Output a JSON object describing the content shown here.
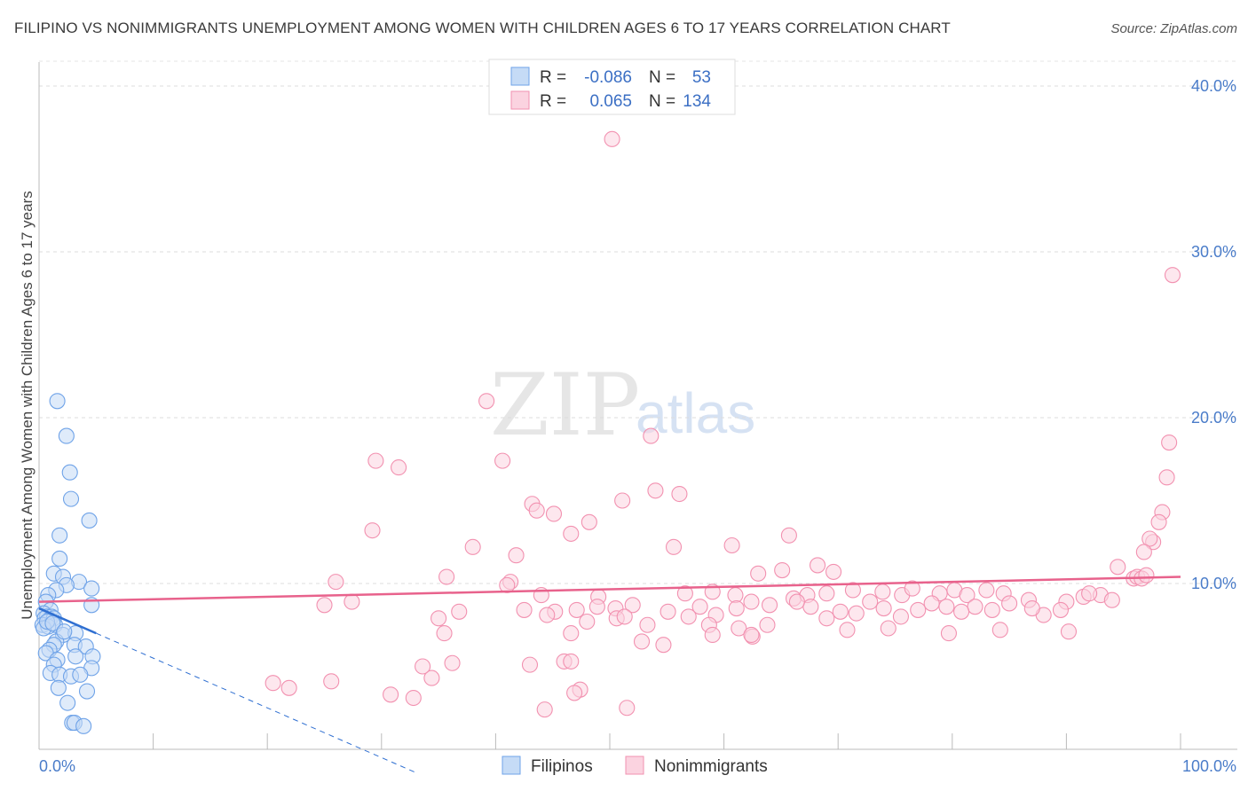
{
  "header": {
    "title": "FILIPINO VS NONIMMIGRANTS UNEMPLOYMENT AMONG WOMEN WITH CHILDREN AGES 6 TO 17 YEARS CORRELATION CHART",
    "source": "Source: ZipAtlas.com"
  },
  "watermark": {
    "zip": "ZIP",
    "atlas": "atlas"
  },
  "legend_box": {
    "rows": [
      {
        "r_label": "R =",
        "r_value": "-0.086",
        "n_label": "N =",
        "n_value": "53"
      },
      {
        "r_label": "R =",
        "r_value": "0.065",
        "n_label": "N =",
        "n_value": "134"
      }
    ]
  },
  "bottom_legend": {
    "series1": "Filipinos",
    "series2": "Nonimmigrants"
  },
  "chart_data": {
    "type": "scatter",
    "title": "FILIPINO VS NONIMMIGRANTS UNEMPLOYMENT AMONG WOMEN WITH CHILDREN AGES 6 TO 17 YEARS CORRELATION CHART",
    "ylabel": "Unemployment Among Women with Children Ages 6 to 17 years",
    "xlabel": "",
    "xlim": [
      0,
      100
    ],
    "ylim": [
      0,
      42
    ],
    "x_tick_labels": [
      "0.0%",
      "100.0%"
    ],
    "y_ticks": [
      10,
      20,
      30,
      40
    ],
    "y_tick_labels": [
      "10.0%",
      "20.0%",
      "30.0%",
      "40.0%"
    ],
    "grid": "horizontal dashed",
    "colors": {
      "filipinos": "#6fa3e8",
      "nonimmigrants": "#f291b0",
      "filipinos_line": "#2f6fd1",
      "nonimmigrants_line": "#e8628c"
    },
    "series": [
      {
        "name": "Filipinos",
        "R": -0.086,
        "N": 53,
        "trend": {
          "x0": 0,
          "y0": 8.5,
          "x1": 5,
          "y1": 7.0,
          "dashed_to_x": 33
        },
        "points": [
          [
            1.6,
            21.0
          ],
          [
            2.4,
            18.9
          ],
          [
            2.7,
            16.7
          ],
          [
            2.8,
            15.1
          ],
          [
            4.4,
            13.8
          ],
          [
            1.8,
            12.9
          ],
          [
            1.8,
            11.5
          ],
          [
            1.3,
            10.6
          ],
          [
            2.1,
            10.4
          ],
          [
            3.5,
            10.1
          ],
          [
            2.4,
            9.9
          ],
          [
            4.6,
            9.7
          ],
          [
            1.5,
            9.6
          ],
          [
            0.8,
            9.3
          ],
          [
            0.6,
            8.9
          ],
          [
            1.0,
            8.4
          ],
          [
            0.4,
            8.2
          ],
          [
            0.7,
            8.0
          ],
          [
            1.1,
            8.0
          ],
          [
            0.5,
            7.9
          ],
          [
            0.9,
            7.8
          ],
          [
            1.3,
            7.9
          ],
          [
            1.4,
            7.5
          ],
          [
            0.3,
            7.5
          ],
          [
            0.8,
            7.4
          ],
          [
            0.4,
            7.3
          ],
          [
            4.6,
            8.7
          ],
          [
            2.1,
            6.9
          ],
          [
            3.2,
            7.0
          ],
          [
            1.5,
            6.5
          ],
          [
            1.3,
            6.3
          ],
          [
            3.1,
            6.3
          ],
          [
            4.1,
            6.2
          ],
          [
            0.9,
            6.0
          ],
          [
            0.6,
            5.8
          ],
          [
            3.2,
            5.6
          ],
          [
            4.7,
            5.6
          ],
          [
            1.6,
            5.4
          ],
          [
            1.3,
            5.1
          ],
          [
            4.6,
            4.9
          ],
          [
            1.0,
            4.6
          ],
          [
            1.8,
            4.5
          ],
          [
            2.8,
            4.4
          ],
          [
            3.6,
            4.5
          ],
          [
            1.7,
            3.7
          ],
          [
            4.2,
            3.5
          ],
          [
            2.5,
            2.8
          ],
          [
            2.9,
            1.6
          ],
          [
            3.1,
            1.6
          ],
          [
            3.9,
            1.4
          ],
          [
            0.7,
            7.7
          ],
          [
            1.2,
            7.6
          ],
          [
            2.2,
            7.1
          ]
        ]
      },
      {
        "name": "Nonimmigrants",
        "R": 0.065,
        "N": 134,
        "trend": {
          "x0": 0,
          "y0": 8.9,
          "x1": 100,
          "y1": 10.4
        },
        "points": [
          [
            50.2,
            36.8
          ],
          [
            39.2,
            21.0
          ],
          [
            53.6,
            18.9
          ],
          [
            29.5,
            17.4
          ],
          [
            31.5,
            17.0
          ],
          [
            40.6,
            17.4
          ],
          [
            99.3,
            28.6
          ],
          [
            99.0,
            18.5
          ],
          [
            98.8,
            16.4
          ],
          [
            98.4,
            14.3
          ],
          [
            98.1,
            13.7
          ],
          [
            97.6,
            12.5
          ],
          [
            97.3,
            12.7
          ],
          [
            96.8,
            11.9
          ],
          [
            43.2,
            14.8
          ],
          [
            43.6,
            14.4
          ],
          [
            45.1,
            14.2
          ],
          [
            51.1,
            15.0
          ],
          [
            54.0,
            15.6
          ],
          [
            56.1,
            15.4
          ],
          [
            48.2,
            13.7
          ],
          [
            46.6,
            13.0
          ],
          [
            29.2,
            13.2
          ],
          [
            38.0,
            12.2
          ],
          [
            41.8,
            11.7
          ],
          [
            55.6,
            12.2
          ],
          [
            60.7,
            12.3
          ],
          [
            65.7,
            12.9
          ],
          [
            68.2,
            11.1
          ],
          [
            69.6,
            10.7
          ],
          [
            63.0,
            10.6
          ],
          [
            65.1,
            10.8
          ],
          [
            94.5,
            11.0
          ],
          [
            95.9,
            10.3
          ],
          [
            96.2,
            10.4
          ],
          [
            96.6,
            10.3
          ],
          [
            97.0,
            10.5
          ],
          [
            35.7,
            10.4
          ],
          [
            26.0,
            10.1
          ],
          [
            41.3,
            10.1
          ],
          [
            41.0,
            9.9
          ],
          [
            44.0,
            9.3
          ],
          [
            49.0,
            9.2
          ],
          [
            56.6,
            9.4
          ],
          [
            59.0,
            9.5
          ],
          [
            61.0,
            9.3
          ],
          [
            66.1,
            9.1
          ],
          [
            67.3,
            9.3
          ],
          [
            69.0,
            9.4
          ],
          [
            71.3,
            9.6
          ],
          [
            73.9,
            9.5
          ],
          [
            75.6,
            9.3
          ],
          [
            76.5,
            9.7
          ],
          [
            78.9,
            9.4
          ],
          [
            80.2,
            9.6
          ],
          [
            81.3,
            9.3
          ],
          [
            83.0,
            9.6
          ],
          [
            84.5,
            9.4
          ],
          [
            86.7,
            9.0
          ],
          [
            90.0,
            8.9
          ],
          [
            91.5,
            9.2
          ],
          [
            93.0,
            9.3
          ],
          [
            94.0,
            9.0
          ],
          [
            92.0,
            9.4
          ],
          [
            89.5,
            8.4
          ],
          [
            88.0,
            8.1
          ],
          [
            87.0,
            8.5
          ],
          [
            85.0,
            8.8
          ],
          [
            83.5,
            8.4
          ],
          [
            82.0,
            8.6
          ],
          [
            80.8,
            8.3
          ],
          [
            79.5,
            8.6
          ],
          [
            78.2,
            8.8
          ],
          [
            77.0,
            8.4
          ],
          [
            75.5,
            8.0
          ],
          [
            74.0,
            8.5
          ],
          [
            72.8,
            8.9
          ],
          [
            71.6,
            8.2
          ],
          [
            70.2,
            8.3
          ],
          [
            69.0,
            7.9
          ],
          [
            67.6,
            8.6
          ],
          [
            66.4,
            8.9
          ],
          [
            64.0,
            8.7
          ],
          [
            62.4,
            8.9
          ],
          [
            61.1,
            8.5
          ],
          [
            59.3,
            8.1
          ],
          [
            57.9,
            8.6
          ],
          [
            56.9,
            8.0
          ],
          [
            55.1,
            8.3
          ],
          [
            52.0,
            8.7
          ],
          [
            50.5,
            8.5
          ],
          [
            48.9,
            8.6
          ],
          [
            47.1,
            8.4
          ],
          [
            45.2,
            8.3
          ],
          [
            44.5,
            8.1
          ],
          [
            42.5,
            8.4
          ],
          [
            27.4,
            8.9
          ],
          [
            25.0,
            8.7
          ],
          [
            35.0,
            7.9
          ],
          [
            36.8,
            8.3
          ],
          [
            48.0,
            7.7
          ],
          [
            50.6,
            7.9
          ],
          [
            53.3,
            7.5
          ],
          [
            58.7,
            7.5
          ],
          [
            61.3,
            7.3
          ],
          [
            62.5,
            6.8
          ],
          [
            63.8,
            7.5
          ],
          [
            70.8,
            7.2
          ],
          [
            74.4,
            7.3
          ],
          [
            79.7,
            7.0
          ],
          [
            84.2,
            7.2
          ],
          [
            90.2,
            7.1
          ],
          [
            59.0,
            6.9
          ],
          [
            54.7,
            6.3
          ],
          [
            52.8,
            6.5
          ],
          [
            46.6,
            7.0
          ],
          [
            35.5,
            7.0
          ],
          [
            34.4,
            4.3
          ],
          [
            33.6,
            5.0
          ],
          [
            43.0,
            5.1
          ],
          [
            46.0,
            5.3
          ],
          [
            46.6,
            5.3
          ],
          [
            47.4,
            3.6
          ],
          [
            46.9,
            3.4
          ],
          [
            32.8,
            3.1
          ],
          [
            30.8,
            3.3
          ],
          [
            21.9,
            3.7
          ],
          [
            25.6,
            4.1
          ],
          [
            44.3,
            2.4
          ],
          [
            51.5,
            2.5
          ],
          [
            20.5,
            4.0
          ],
          [
            62.4,
            6.9
          ],
          [
            36.2,
            5.2
          ],
          [
            51.3,
            8.0
          ]
        ]
      }
    ]
  }
}
